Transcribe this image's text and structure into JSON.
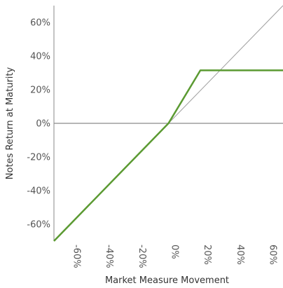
{
  "chart_data": {
    "type": "line",
    "title": "",
    "xlabel": "Market Measure Movement",
    "ylabel": "Notes Return at Maturity",
    "xlim": [
      -70,
      70
    ],
    "ylim": [
      -70,
      70
    ],
    "x_ticks": [
      -60,
      -40,
      -20,
      0,
      20,
      40,
      60
    ],
    "x_tick_labels": [
      "-60%",
      "-40%",
      "-20%",
      "0%",
      "20%",
      "40%",
      "60%"
    ],
    "y_ticks": [
      60,
      40,
      20,
      0,
      -20,
      -40,
      -60
    ],
    "y_tick_labels": [
      "60%",
      "40%",
      "20%",
      "0%",
      "-20%",
      "-40%",
      "-60%"
    ],
    "grid": false,
    "legend": "none",
    "series": [
      {
        "role": "notes-return",
        "color": "#5b9a32",
        "x": [
          -70,
          0,
          19.5,
          70
        ],
        "y": [
          -70,
          0,
          31.5,
          31.5
        ]
      },
      {
        "role": "reference-diagonal",
        "color": "#a0a0a0",
        "x": [
          0,
          70
        ],
        "y": [
          0,
          70
        ]
      }
    ],
    "zero_line_color": "#8a8a8a",
    "axis_color": "#8a8a8a"
  }
}
